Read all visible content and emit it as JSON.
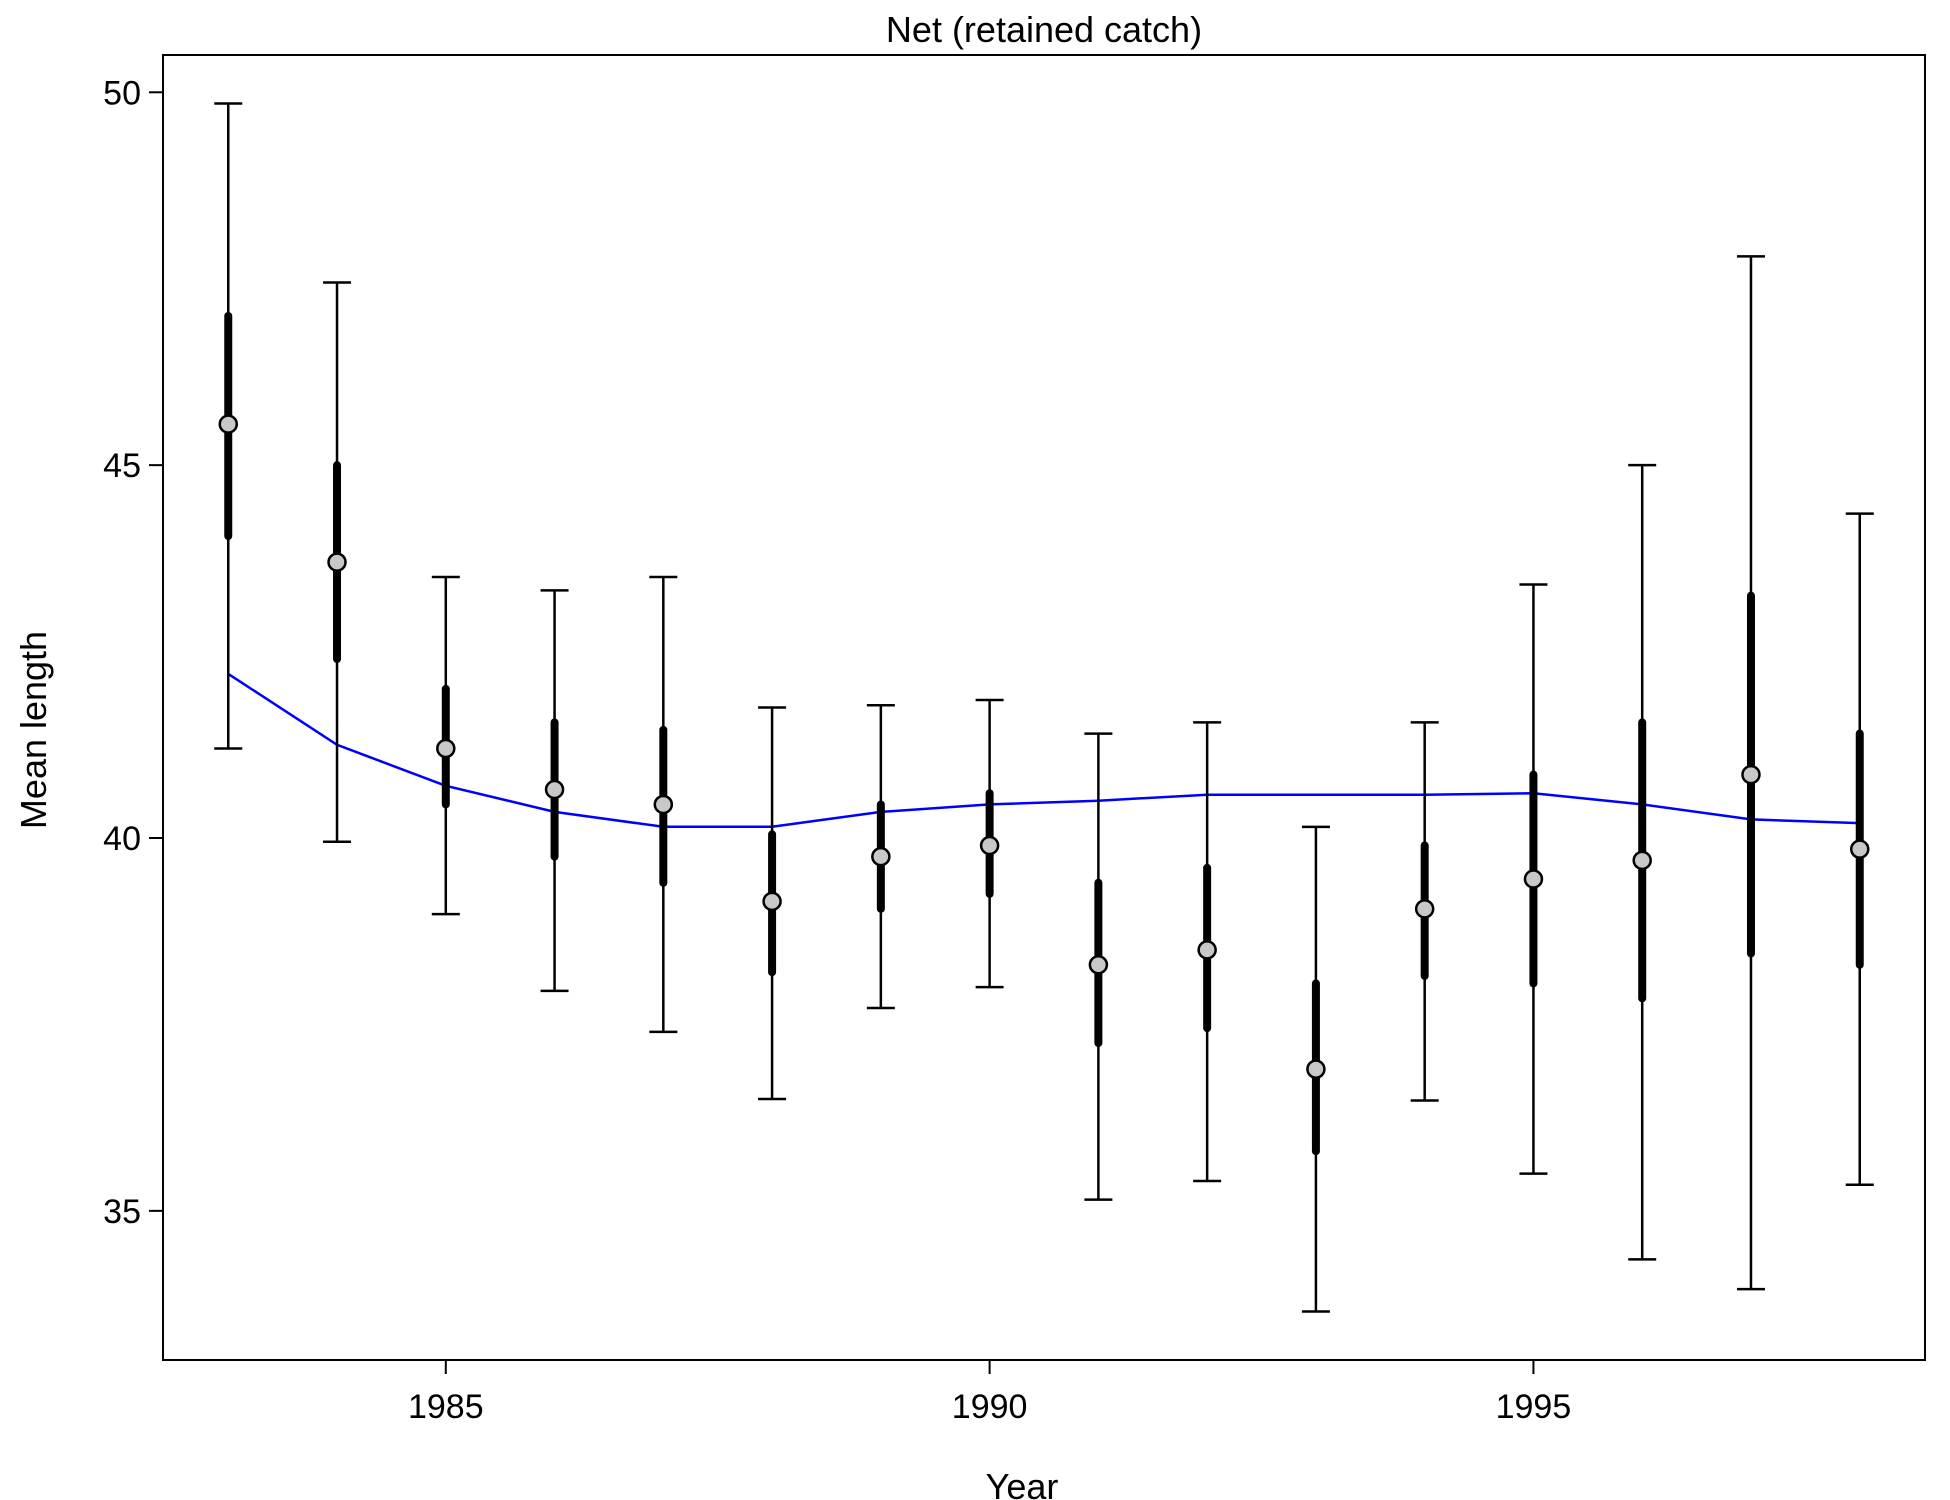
{
  "chart_data": {
    "type": "scatter",
    "title": "Net (retained catch)",
    "xlabel": "Year",
    "ylabel": "Mean length",
    "xlim": [
      1982.4,
      1998.6
    ],
    "ylim": [
      33.0,
      50.5
    ],
    "xticks": [
      1985,
      1990,
      1995
    ],
    "yticks": [
      35,
      40,
      45,
      50
    ],
    "grid": false,
    "colors": {
      "fit": "#0000ff",
      "point_fill": "#c8c8c8",
      "bar": "#000000"
    },
    "observed": [
      {
        "x": 1983,
        "y": 45.55,
        "inner": [
          44.05,
          47.0
        ],
        "outer": [
          41.2,
          49.85
        ]
      },
      {
        "x": 1984,
        "y": 43.7,
        "inner": [
          42.4,
          45.0
        ],
        "outer": [
          39.95,
          47.45
        ]
      },
      {
        "x": 1985,
        "y": 41.2,
        "inner": [
          40.45,
          42.0
        ],
        "outer": [
          38.98,
          43.5
        ]
      },
      {
        "x": 1986,
        "y": 40.65,
        "inner": [
          39.75,
          41.55
        ],
        "outer": [
          37.95,
          43.32
        ]
      },
      {
        "x": 1987,
        "y": 40.45,
        "inner": [
          39.4,
          41.45
        ],
        "outer": [
          37.4,
          43.5
        ]
      },
      {
        "x": 1988,
        "y": 39.15,
        "inner": [
          38.2,
          40.05
        ],
        "outer": [
          36.5,
          41.75
        ]
      },
      {
        "x": 1989,
        "y": 39.75,
        "inner": [
          39.05,
          40.45
        ],
        "outer": [
          37.72,
          41.78
        ]
      },
      {
        "x": 1990,
        "y": 39.9,
        "inner": [
          39.25,
          40.6
        ],
        "outer": [
          38.0,
          41.85
        ]
      },
      {
        "x": 1991,
        "y": 38.3,
        "inner": [
          37.25,
          39.4
        ],
        "outer": [
          35.15,
          41.4
        ]
      },
      {
        "x": 1992,
        "y": 38.5,
        "inner": [
          37.45,
          39.6
        ],
        "outer": [
          35.4,
          41.55
        ]
      },
      {
        "x": 1993,
        "y": 36.9,
        "inner": [
          35.8,
          38.05
        ],
        "outer": [
          33.65,
          40.15
        ]
      },
      {
        "x": 1994,
        "y": 39.05,
        "inner": [
          38.15,
          39.9
        ],
        "outer": [
          36.48,
          41.55
        ]
      },
      {
        "x": 1995,
        "y": 39.45,
        "inner": [
          38.05,
          40.85
        ],
        "outer": [
          35.5,
          43.4
        ]
      },
      {
        "x": 1996,
        "y": 39.7,
        "inner": [
          37.85,
          41.55
        ],
        "outer": [
          34.35,
          45.0
        ]
      },
      {
        "x": 1997,
        "y": 40.85,
        "inner": [
          38.45,
          43.25
        ],
        "outer": [
          33.95,
          47.8
        ]
      },
      {
        "x": 1998,
        "y": 39.85,
        "inner": [
          38.3,
          41.4
        ],
        "outer": [
          35.35,
          44.35
        ]
      }
    ],
    "fit": {
      "x": [
        1983,
        1984,
        1985,
        1986,
        1987,
        1988,
        1989,
        1990,
        1991,
        1992,
        1993,
        1994,
        1995,
        1996,
        1997,
        1998
      ],
      "y": [
        42.2,
        41.25,
        40.7,
        40.35,
        40.15,
        40.15,
        40.35,
        40.45,
        40.5,
        40.58,
        40.58,
        40.58,
        40.6,
        40.45,
        40.25,
        40.2
      ]
    }
  }
}
